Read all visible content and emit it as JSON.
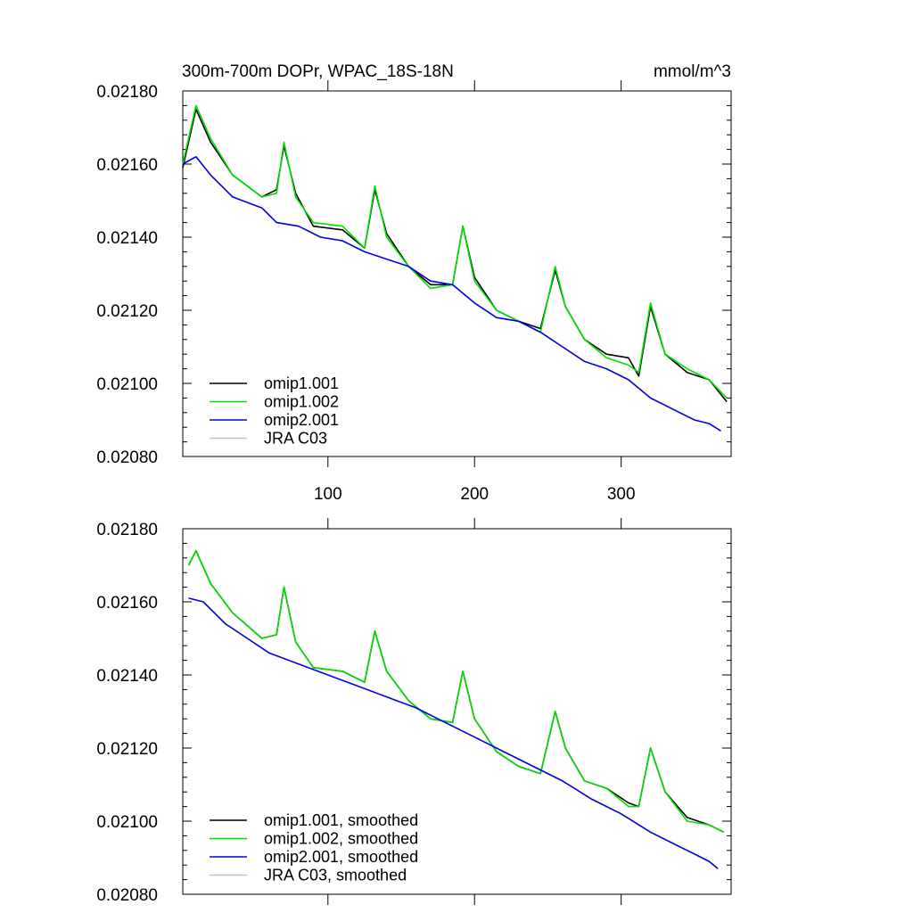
{
  "chart_data": [
    {
      "type": "line",
      "title": "300m-700m DOPr, WPAC_18S-18N",
      "units": "mmol/m^3",
      "xlim": [
        1,
        375
      ],
      "ylim": [
        0.0208,
        0.0218
      ],
      "x_ticks": [
        "100",
        "200",
        "300"
      ],
      "y_ticks": [
        "0.02080",
        "0.02100",
        "0.02120",
        "0.02140",
        "0.02160",
        "0.02180"
      ],
      "legend_position": "bottom-left",
      "series": [
        {
          "name": "omip1.001",
          "color": "#000000",
          "x": [
            1,
            10,
            20,
            35,
            55,
            65,
            70,
            78,
            90,
            110,
            125,
            132,
            140,
            155,
            170,
            185,
            192,
            200,
            215,
            230,
            245,
            255,
            262,
            275,
            290,
            305,
            312,
            320,
            330,
            345,
            360,
            372
          ],
          "values": [
            0.02159,
            0.02175,
            0.02166,
            0.02157,
            0.02151,
            0.02153,
            0.02165,
            0.02152,
            0.02143,
            0.02142,
            0.02137,
            0.02153,
            0.02141,
            0.02132,
            0.02127,
            0.02127,
            0.02143,
            0.02129,
            0.0212,
            0.02117,
            0.02115,
            0.02131,
            0.02121,
            0.02112,
            0.02108,
            0.02107,
            0.02102,
            0.02121,
            0.02108,
            0.02103,
            0.02101,
            0.02095
          ]
        },
        {
          "name": "omip1.002",
          "color": "#00e000",
          "x": [
            1,
            10,
            20,
            35,
            55,
            65,
            70,
            78,
            90,
            110,
            125,
            132,
            140,
            155,
            170,
            185,
            192,
            200,
            215,
            230,
            245,
            255,
            262,
            275,
            290,
            305,
            312,
            320,
            330,
            345,
            360,
            372
          ],
          "values": [
            0.0216,
            0.02176,
            0.02167,
            0.02157,
            0.02151,
            0.02152,
            0.02166,
            0.02151,
            0.02144,
            0.02143,
            0.02137,
            0.02154,
            0.0214,
            0.02132,
            0.02126,
            0.02127,
            0.02143,
            0.02128,
            0.0212,
            0.02117,
            0.02114,
            0.02132,
            0.02121,
            0.02112,
            0.02107,
            0.02105,
            0.02103,
            0.02122,
            0.02108,
            0.02104,
            0.02101,
            0.02096
          ]
        },
        {
          "name": "omip2.001",
          "color": "#0000e0",
          "x": [
            1,
            10,
            20,
            35,
            55,
            65,
            80,
            95,
            110,
            125,
            140,
            155,
            170,
            185,
            200,
            215,
            230,
            245,
            260,
            275,
            290,
            305,
            320,
            335,
            350,
            360,
            368
          ],
          "values": [
            0.0216,
            0.02162,
            0.02157,
            0.02151,
            0.02148,
            0.02144,
            0.02143,
            0.0214,
            0.02139,
            0.02136,
            0.02134,
            0.02132,
            0.02128,
            0.02127,
            0.02122,
            0.02118,
            0.02117,
            0.02114,
            0.0211,
            0.02106,
            0.02104,
            0.02101,
            0.02096,
            0.02093,
            0.0209,
            0.02089,
            0.02087
          ]
        },
        {
          "name": "JRA C03",
          "color": "#c0c0c0",
          "x": [],
          "values": []
        }
      ]
    },
    {
      "type": "line",
      "xlim": [
        1,
        375
      ],
      "ylim": [
        0.0208,
        0.0218
      ],
      "x_ticks": [
        "",
        "",
        ""
      ],
      "y_ticks": [
        "0.02080",
        "0.02100",
        "0.02120",
        "0.02140",
        "0.02160",
        "0.02180"
      ],
      "legend_position": "bottom-left",
      "series": [
        {
          "name": "omip1.001, smoothed",
          "color": "#000000",
          "x": [
            5,
            10,
            20,
            35,
            55,
            65,
            70,
            78,
            90,
            110,
            125,
            132,
            140,
            155,
            170,
            185,
            192,
            200,
            215,
            230,
            245,
            255,
            262,
            275,
            290,
            305,
            312,
            320,
            330,
            345,
            360,
            370
          ],
          "values": [
            0.0217,
            0.02174,
            0.02165,
            0.02157,
            0.0215,
            0.02151,
            0.02164,
            0.02149,
            0.02142,
            0.02141,
            0.02138,
            0.02152,
            0.02141,
            0.02133,
            0.02128,
            0.02127,
            0.02141,
            0.02128,
            0.02119,
            0.02115,
            0.02113,
            0.0213,
            0.0212,
            0.02111,
            0.02109,
            0.02105,
            0.02104,
            0.0212,
            0.02108,
            0.02101,
            0.02099,
            0.02097
          ]
        },
        {
          "name": "omip1.002, smoothed",
          "color": "#00e000",
          "x": [
            5,
            10,
            20,
            35,
            55,
            65,
            70,
            78,
            90,
            110,
            125,
            132,
            140,
            155,
            170,
            185,
            192,
            200,
            215,
            230,
            245,
            255,
            262,
            275,
            290,
            305,
            312,
            320,
            330,
            345,
            360,
            370
          ],
          "values": [
            0.0217,
            0.02174,
            0.02165,
            0.02157,
            0.0215,
            0.02151,
            0.02164,
            0.02149,
            0.02142,
            0.02141,
            0.02138,
            0.02152,
            0.02141,
            0.02133,
            0.02128,
            0.02127,
            0.02141,
            0.02128,
            0.02119,
            0.02115,
            0.02113,
            0.0213,
            0.0212,
            0.02111,
            0.02109,
            0.02104,
            0.02104,
            0.0212,
            0.02108,
            0.021,
            0.02099,
            0.02097
          ]
        },
        {
          "name": "omip2.001, smoothed",
          "color": "#0000e0",
          "x": [
            5,
            15,
            30,
            45,
            60,
            80,
            100,
            120,
            140,
            160,
            180,
            200,
            220,
            240,
            260,
            280,
            300,
            320,
            335,
            350,
            360,
            366
          ],
          "values": [
            0.02161,
            0.0216,
            0.02154,
            0.0215,
            0.02146,
            0.02143,
            0.0214,
            0.02137,
            0.02134,
            0.02131,
            0.02127,
            0.02123,
            0.02119,
            0.02115,
            0.02111,
            0.02106,
            0.02102,
            0.02097,
            0.02094,
            0.02091,
            0.02089,
            0.02087
          ]
        },
        {
          "name": "JRA C03, smoothed",
          "color": "#c0c0c0",
          "x": [],
          "values": []
        }
      ]
    }
  ]
}
